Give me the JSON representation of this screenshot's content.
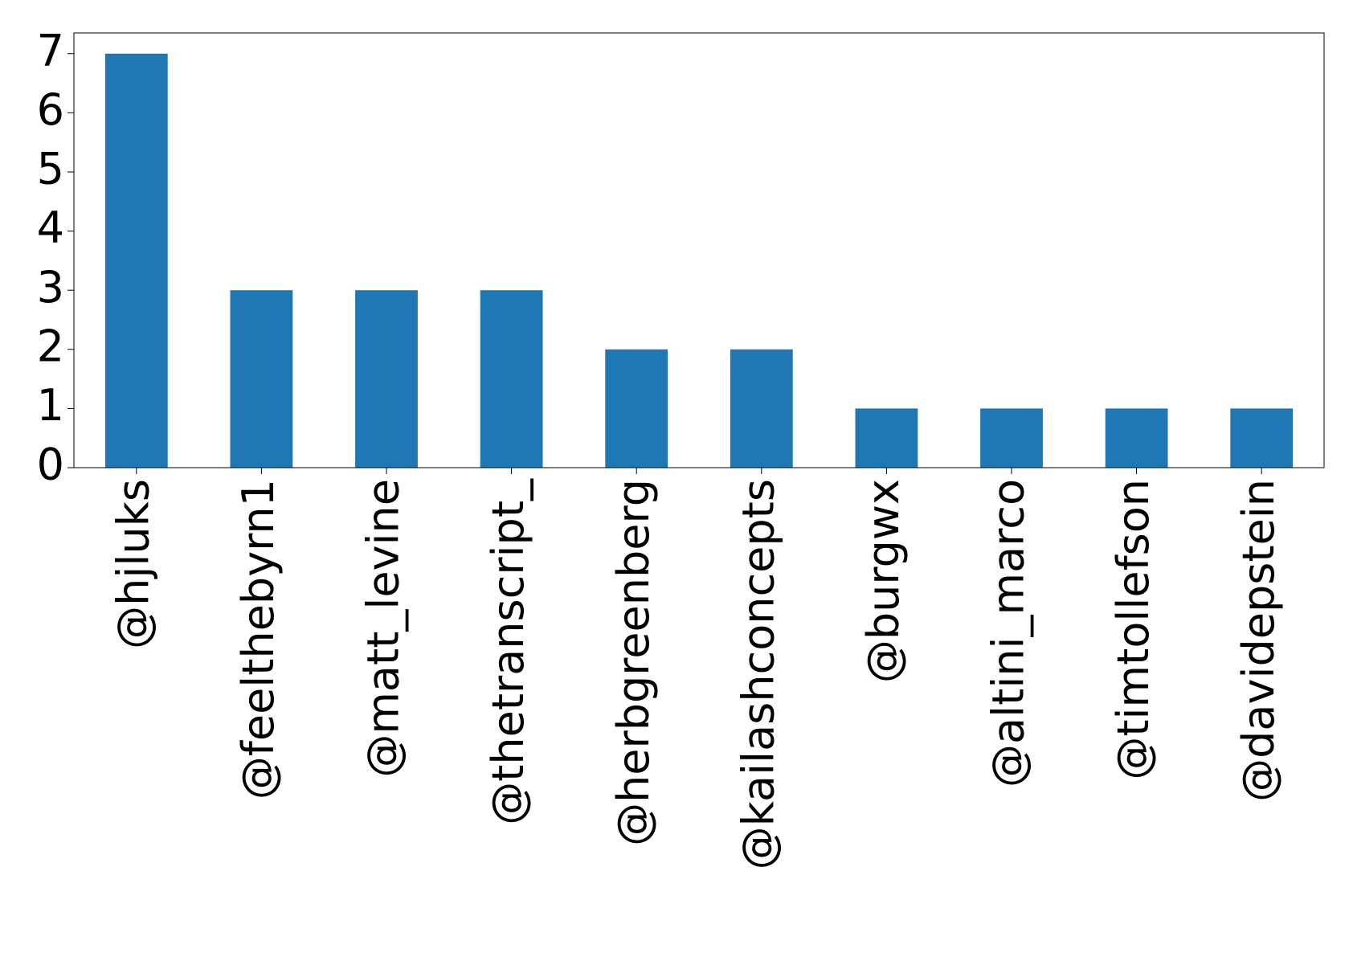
{
  "chart_data": {
    "type": "bar",
    "categories": [
      "@hjluks",
      "@feelthebyrn1",
      "@matt_levine",
      "@thetranscript_",
      "@herbgreenberg",
      "@kailashconcepts",
      "@burgwx",
      "@altini_marco",
      "@timtollefson",
      "@davidepstein"
    ],
    "values": [
      7,
      3,
      3,
      3,
      2,
      2,
      1,
      1,
      1,
      1
    ],
    "color": "#1f77b4",
    "ylim": [
      0,
      7.35
    ],
    "yticks": [
      0,
      1,
      2,
      3,
      4,
      5,
      6,
      7
    ],
    "grid": false
  }
}
